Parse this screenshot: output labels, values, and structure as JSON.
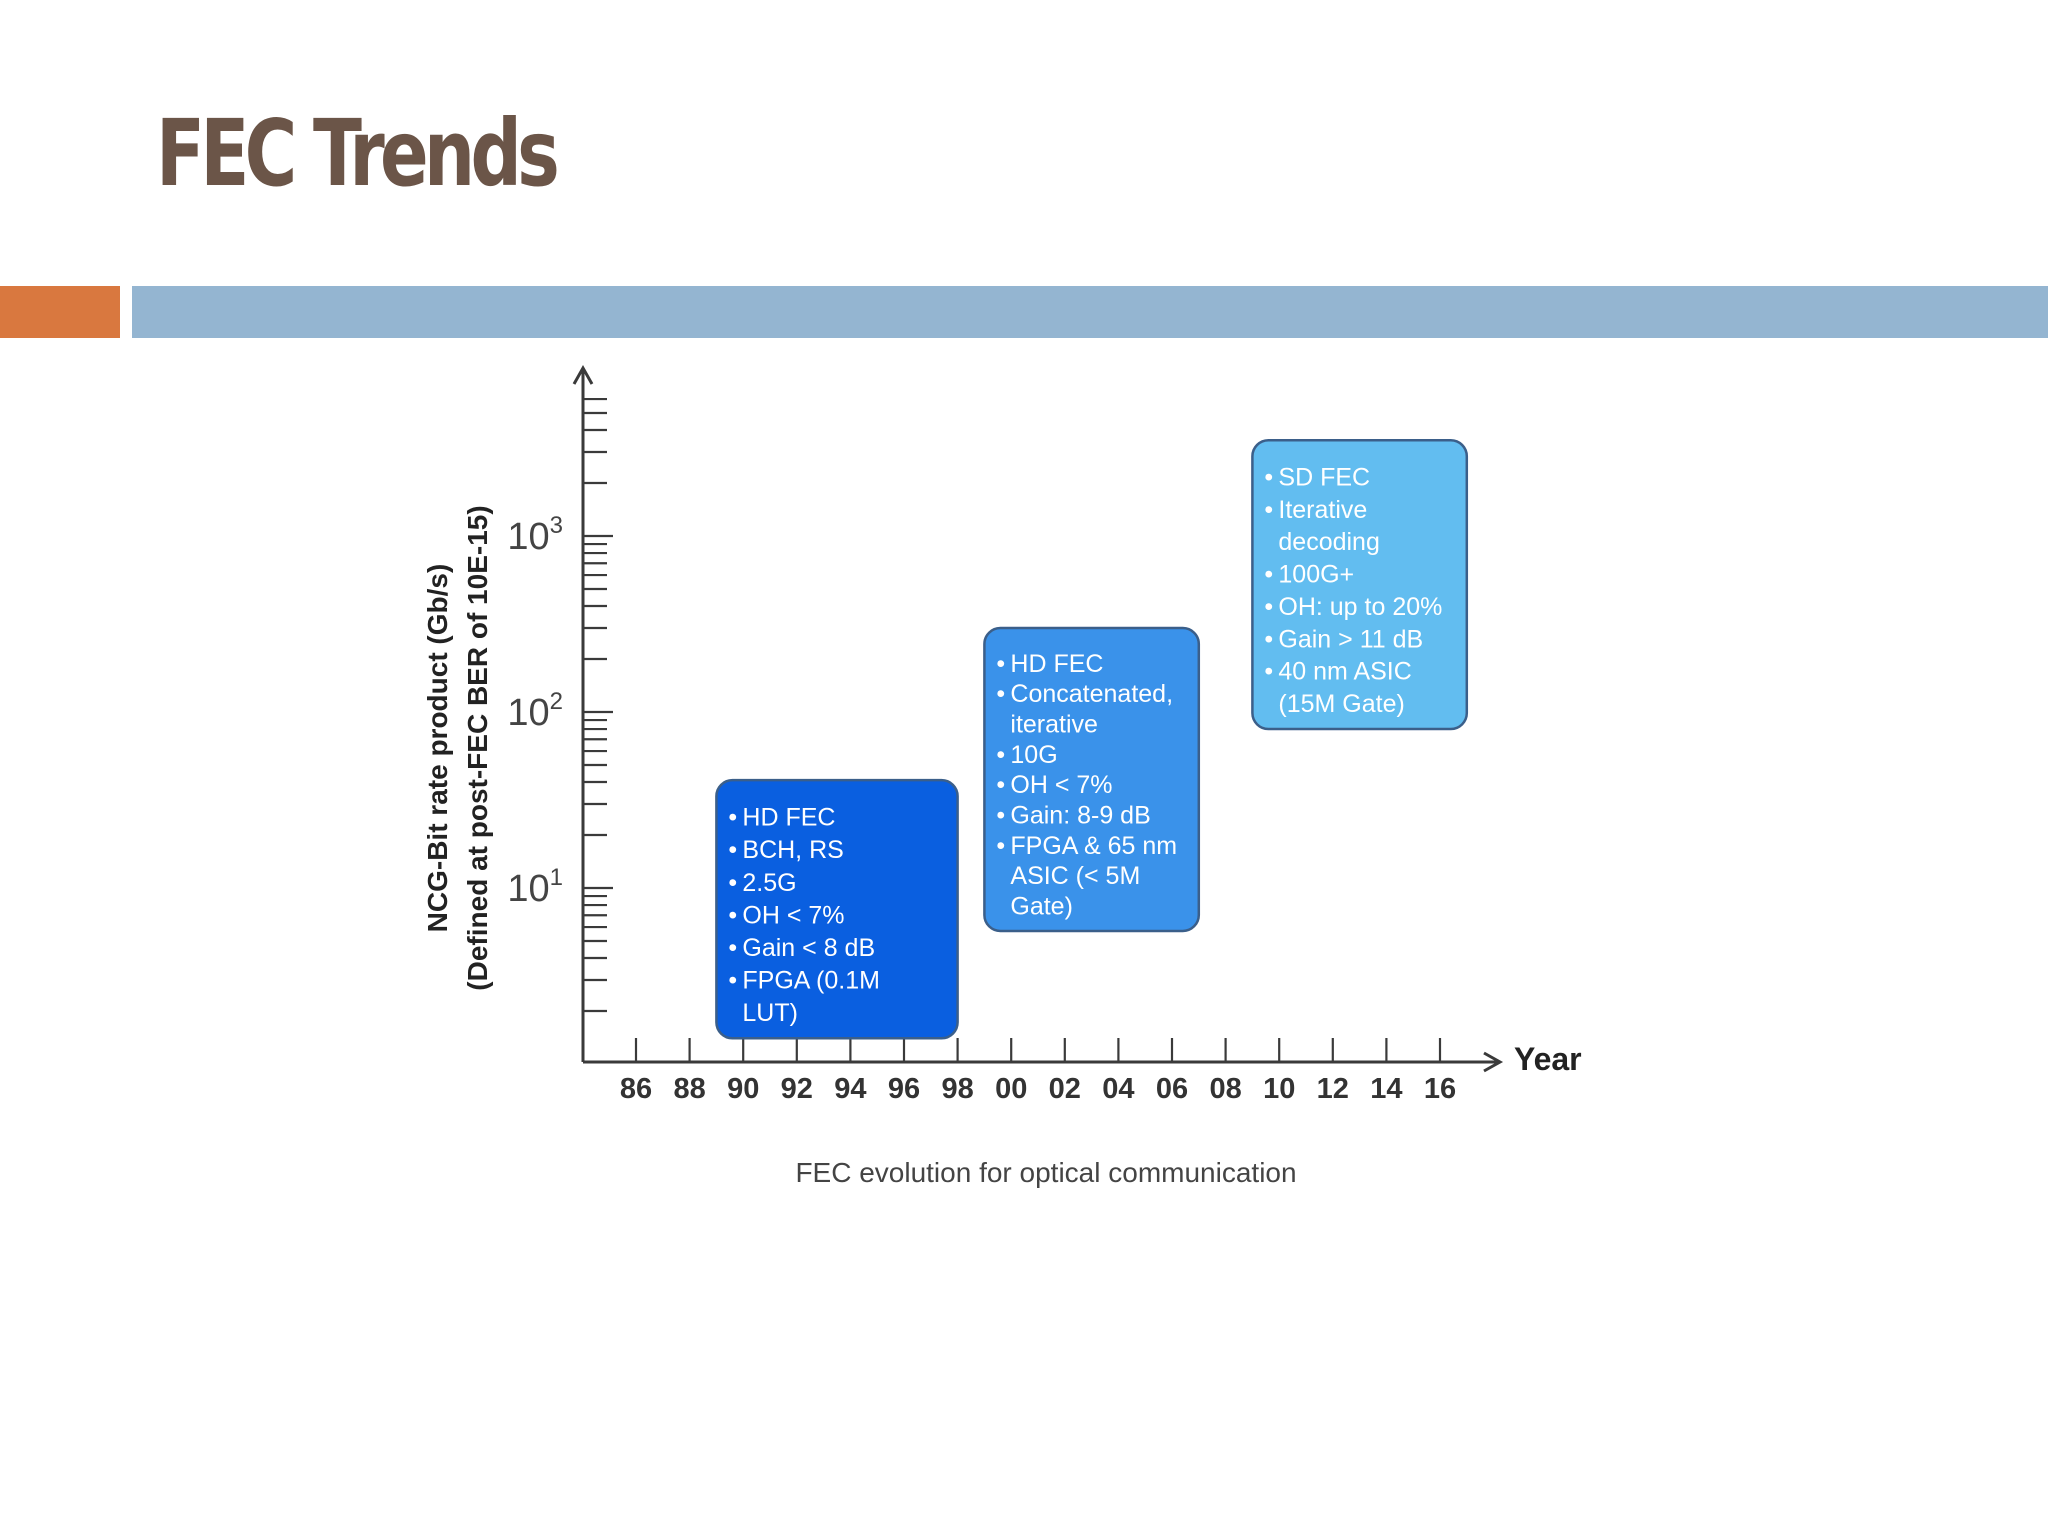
{
  "slide": {
    "title": "FEC Trends",
    "accent_colors": {
      "orange": "#d9783f",
      "blue": "#94b5d1"
    }
  },
  "chart_data": {
    "type": "timeline",
    "xlabel": "Year",
    "ylabel_lines": [
      "NCG-Bit rate product (Gb/s)",
      "(Defined at post-FEC BER of 10E-15)"
    ],
    "y_scale": "log",
    "y_ticks": [
      {
        "base": "10",
        "exp": "1",
        "value": 10
      },
      {
        "base": "10",
        "exp": "2",
        "value": 100
      },
      {
        "base": "10",
        "exp": "3",
        "value": 1000
      }
    ],
    "x_ticks": [
      "86",
      "88",
      "90",
      "92",
      "94",
      "96",
      "98",
      "00",
      "02",
      "04",
      "06",
      "08",
      "10",
      "12",
      "14",
      "16"
    ],
    "grid": false,
    "caption": "FEC evolution for optical communication",
    "boxes": [
      {
        "x_start": "89",
        "x_end": "98",
        "y_low": 1.4,
        "y_high": 41,
        "color": "#0a5fe0",
        "lines": [
          {
            "bullet": true,
            "text": "HD FEC"
          },
          {
            "bullet": true,
            "text": "BCH, RS"
          },
          {
            "bullet": true,
            "text": "2.5G"
          },
          {
            "bullet": true,
            "text": "OH < 7%"
          },
          {
            "bullet": true,
            "text": "Gain < 8 dB"
          },
          {
            "bullet": true,
            "text": "FPGA (0.1M"
          },
          {
            "bullet": false,
            "text": "LUT)"
          }
        ]
      },
      {
        "x_start": "99",
        "x_end": "07",
        "y_low": 5.7,
        "y_high": 300,
        "color": "#3a92ea",
        "lines": [
          {
            "bullet": true,
            "text": "HD FEC"
          },
          {
            "bullet": true,
            "text": "Concatenated,"
          },
          {
            "bullet": false,
            "text": "iterative"
          },
          {
            "bullet": true,
            "text": "10G"
          },
          {
            "bullet": true,
            "text": "OH < 7%"
          },
          {
            "bullet": true,
            "text": "Gain: 8-9 dB"
          },
          {
            "bullet": true,
            "text": "FPGA & 65 nm"
          },
          {
            "bullet": false,
            "text": "ASIC (< 5M"
          },
          {
            "bullet": false,
            "text": "Gate)"
          }
        ]
      },
      {
        "x_start": "09",
        "x_end": "17",
        "y_low": 80,
        "y_high": 3500,
        "color": "#62bdf0",
        "lines": [
          {
            "bullet": true,
            "text": "SD FEC"
          },
          {
            "bullet": true,
            "text": "Iterative"
          },
          {
            "bullet": false,
            "text": "decoding"
          },
          {
            "bullet": true,
            "text": "100G+"
          },
          {
            "bullet": true,
            "text": "OH: up to 20%"
          },
          {
            "bullet": true,
            "text": "Gain > 11 dB"
          },
          {
            "bullet": true,
            "text": "40 nm ASIC"
          },
          {
            "bullet": false,
            "text": "(15M Gate)"
          }
        ]
      }
    ]
  }
}
